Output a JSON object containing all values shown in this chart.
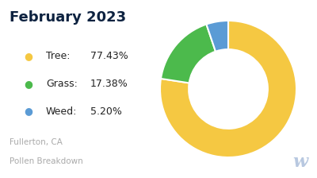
{
  "title": "February 2023",
  "title_color": "#0d2240",
  "background_color": "#ffffff",
  "slices": [
    77.43,
    17.38,
    5.2
  ],
  "labels": [
    "Tree",
    "Grass",
    "Weed"
  ],
  "percentages": [
    "77.43%",
    "17.38%",
    "5.20%"
  ],
  "colors": [
    "#f5c842",
    "#4cba4c",
    "#5b9bd5"
  ],
  "subtitle_line1": "Fullerton, CA",
  "subtitle_line2": "Pollen Breakdown",
  "subtitle_color": "#aaaaaa",
  "watermark_color": "#b8c8e0",
  "startangle": 90,
  "donut_width": 0.42
}
